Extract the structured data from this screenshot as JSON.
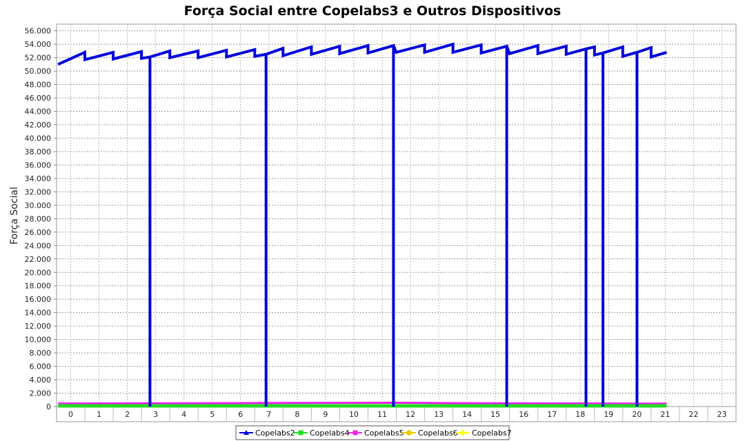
{
  "chart_data": {
    "type": "line",
    "title": "Força Social entre Copelabs3 e Outros Dispositivos",
    "xlabel": "",
    "ylabel": "Força Social",
    "categories": [
      "0",
      "1",
      "2",
      "3",
      "4",
      "5",
      "6",
      "7",
      "8",
      "9",
      "10",
      "11",
      "12",
      "13",
      "14",
      "15",
      "16",
      "17",
      "18",
      "19",
      "20",
      "21",
      "22",
      "23"
    ],
    "ylim": [
      0,
      57000
    ],
    "yticks": [
      0,
      2000,
      4000,
      6000,
      8000,
      10000,
      12000,
      14000,
      16000,
      18000,
      20000,
      22000,
      24000,
      26000,
      28000,
      30000,
      32000,
      34000,
      36000,
      38000,
      40000,
      42000,
      44000,
      46000,
      48000,
      50000,
      52000,
      54000,
      56000
    ],
    "ytick_labels": [
      "0",
      "2.000",
      "4.000",
      "6.000",
      "8.000",
      "10.000",
      "12.000",
      "14.000",
      "16.000",
      "18.000",
      "20.000",
      "22.000",
      "24.000",
      "26.000",
      "28.000",
      "30.000",
      "32.000",
      "34.000",
      "36.000",
      "38.000",
      "40.000",
      "42.000",
      "44.000",
      "46.000",
      "48.000",
      "50.000",
      "52.000",
      "54.000",
      "56.000"
    ],
    "grid": true,
    "legend_position": "bottom",
    "series": [
      {
        "name": "Copelabs2",
        "color": "#0000dd",
        "marker": "triangle",
        "points": [
          [
            -0.45,
            51000
          ],
          [
            0.5,
            52800
          ],
          [
            0.5,
            51700
          ],
          [
            1.5,
            52800
          ],
          [
            1.5,
            51800
          ],
          [
            2.5,
            52900
          ],
          [
            2.5,
            51900
          ],
          [
            2.8,
            52100
          ],
          [
            2.8,
            0
          ],
          [
            2.8,
            52100
          ],
          [
            3.5,
            53000
          ],
          [
            3.5,
            52000
          ],
          [
            4.5,
            53000
          ],
          [
            4.5,
            52000
          ],
          [
            5.5,
            53100
          ],
          [
            5.5,
            52100
          ],
          [
            6.5,
            53200
          ],
          [
            6.5,
            52200
          ],
          [
            6.9,
            52500
          ],
          [
            6.9,
            0
          ],
          [
            6.9,
            52500
          ],
          [
            7.5,
            53400
          ],
          [
            7.5,
            52300
          ],
          [
            8.5,
            53600
          ],
          [
            8.5,
            52500
          ],
          [
            9.5,
            53700
          ],
          [
            9.5,
            52600
          ],
          [
            10.5,
            53800
          ],
          [
            10.5,
            52700
          ],
          [
            11.4,
            53800
          ],
          [
            11.4,
            0
          ],
          [
            11.4,
            53800
          ],
          [
            11.5,
            52800
          ],
          [
            12.5,
            53900
          ],
          [
            12.5,
            52800
          ],
          [
            13.5,
            54000
          ],
          [
            13.5,
            52800
          ],
          [
            14.5,
            53900
          ],
          [
            14.5,
            52700
          ],
          [
            15.4,
            53700
          ],
          [
            15.4,
            0
          ],
          [
            15.4,
            53700
          ],
          [
            15.5,
            52600
          ],
          [
            16.5,
            53800
          ],
          [
            16.5,
            52600
          ],
          [
            17.5,
            53700
          ],
          [
            17.5,
            52500
          ],
          [
            18.2,
            53300
          ],
          [
            18.2,
            0
          ],
          [
            18.2,
            53300
          ],
          [
            18.5,
            53600
          ],
          [
            18.5,
            52400
          ],
          [
            18.8,
            52700
          ],
          [
            18.8,
            0
          ],
          [
            18.8,
            52700
          ],
          [
            19.5,
            53600
          ],
          [
            19.5,
            52200
          ],
          [
            20.0,
            52800
          ],
          [
            20.0,
            0
          ],
          [
            20.0,
            52800
          ],
          [
            20.5,
            53500
          ],
          [
            20.5,
            52100
          ],
          [
            21.05,
            52800
          ]
        ]
      },
      {
        "name": "Copelabs4",
        "color": "#22dd22",
        "marker": "square",
        "points": [
          [
            -0.45,
            100
          ],
          [
            21.05,
            100
          ]
        ]
      },
      {
        "name": "Copelabs5",
        "color": "#ee22ee",
        "marker": "square",
        "points": [
          [
            -0.45,
            450
          ],
          [
            3.5,
            480
          ],
          [
            7.0,
            520
          ],
          [
            11.4,
            560
          ],
          [
            15.0,
            480
          ],
          [
            21.05,
            430
          ]
        ]
      },
      {
        "name": "Copelabs6",
        "color": "#eecc00",
        "marker": "circle",
        "points": [
          [
            -0.45,
            120
          ],
          [
            21.05,
            120
          ]
        ]
      },
      {
        "name": "Copelabs7",
        "color": "#ffff00",
        "marker": "diamond",
        "points": [
          [
            -0.45,
            80
          ],
          [
            21.05,
            80
          ]
        ]
      }
    ]
  }
}
